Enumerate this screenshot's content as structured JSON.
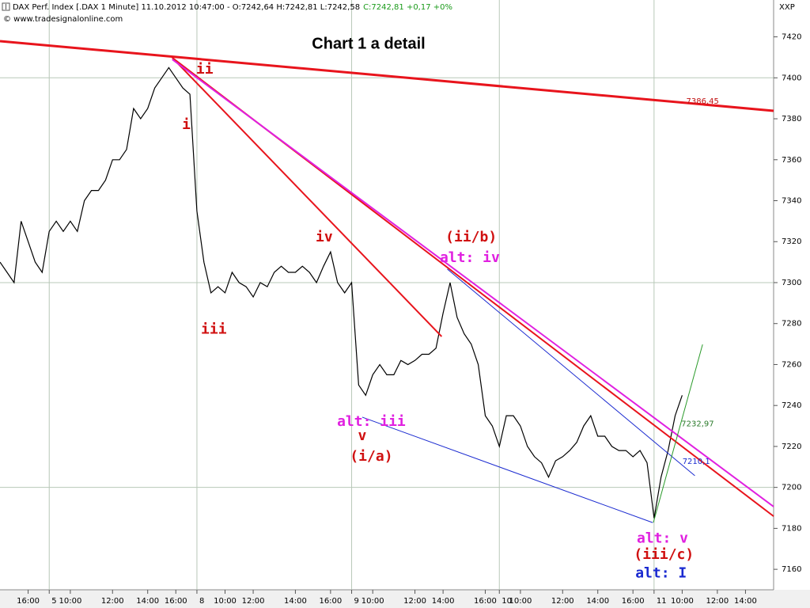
{
  "chart_data": {
    "type": "line",
    "title": "Chart 1 a detail",
    "header": {
      "instrument": "DAX Perf. Index [.DAX  1 Minute] 11.10.2012 10:47:00 - O:7242,64 H:7242,81 L:7242,58",
      "change": "C:7242,81 +0,17 +0%",
      "copyright": "© www.tradesignalonline.com",
      "symbol": "XXP"
    },
    "categories": [
      null,
      null,
      null,
      null,
      "16:00",
      null,
      null,
      "5",
      null,
      null,
      "10:00",
      null,
      null,
      null,
      null,
      null,
      "12:00",
      null,
      null,
      null,
      null,
      "14:00",
      null,
      null,
      null,
      "16:00",
      null,
      null,
      "8",
      null,
      null,
      null,
      "10:00",
      null,
      null,
      null,
      "12:00",
      null,
      null,
      null,
      null,
      null,
      "14:00",
      null,
      null,
      null,
      null,
      "16:00",
      null,
      null,
      "9",
      null,
      null,
      "10:00",
      null,
      null,
      null,
      null,
      null,
      "12:00",
      null,
      null,
      null,
      "14:00",
      null,
      null,
      null,
      null,
      null,
      "16:00",
      null,
      "10",
      null,
      null,
      "10:00",
      null,
      null,
      null,
      null,
      null,
      "12:00",
      null,
      null,
      null,
      null,
      "14:00",
      null,
      null,
      null,
      null,
      "16:00",
      null,
      null,
      "11",
      null,
      null,
      null,
      "10:00",
      null,
      null,
      null,
      null,
      "12:00",
      null,
      null,
      null,
      "14:00",
      null,
      null,
      null,
      null
    ],
    "series": [
      {
        "color": "#000000",
        "values": [
          7310,
          7305,
          7300,
          7330,
          7320,
          7310,
          7305,
          7325,
          7330,
          7325,
          7330,
          7325,
          7340,
          7345,
          7345,
          7350,
          7360,
          7360,
          7365,
          7385,
          7380,
          7385,
          7395,
          7400,
          7405,
          7400,
          7395,
          7392,
          7335,
          7310,
          7295,
          7298,
          7295,
          7305,
          7300,
          7298,
          7293,
          7300,
          7298,
          7305,
          7308,
          7305,
          7305,
          7308,
          7305,
          7300,
          7308,
          7315,
          7300,
          7295,
          7300,
          7250,
          7245,
          7255,
          7260,
          7255,
          7255,
          7262,
          7260,
          7262,
          7265,
          7265,
          7268,
          7285,
          7300,
          7283,
          7275,
          7270,
          7260,
          7235,
          7230,
          7220,
          7235,
          7235,
          7230,
          7220,
          7215,
          7212,
          7205,
          7213,
          7215,
          7218,
          7222,
          7230,
          7235,
          7225,
          7225,
          7220,
          7218,
          7218,
          7215,
          7218,
          7212,
          7185,
          7205,
          7218,
          7235,
          7245,
          null,
          null,
          null,
          null,
          null,
          null,
          null,
          null,
          null,
          null,
          null,
          null,
          null
        ]
      }
    ],
    "ylim": [
      7150,
      7438
    ],
    "yticks": [
      7160,
      7180,
      7200,
      7220,
      7240,
      7260,
      7280,
      7300,
      7320,
      7340,
      7360,
      7380,
      7400,
      7420
    ],
    "ygrid": [
      7200,
      7300,
      7400
    ],
    "trendlines": [
      {
        "color": "#e8141c",
        "width": 3,
        "x": [
          0,
          110
        ],
        "y": [
          7417.9,
          7383.9
        ]
      },
      {
        "color": "#e8141c",
        "width": 2,
        "x": [
          24.5,
          62.8
        ],
        "y": [
          7409.8,
          7273.7
        ]
      },
      {
        "color": "#e8141c",
        "width": 2,
        "x": [
          24.5,
          110
        ],
        "y": [
          7409.8,
          7185.9
        ]
      },
      {
        "color": "#e020e0",
        "width": 2,
        "x": [
          24.5,
          110
        ],
        "y": [
          7409,
          7190.6
        ]
      },
      {
        "color": "#1a2ad0",
        "width": 1,
        "x": [
          63.6,
          98.8
        ],
        "y": [
          7306.6,
          7205.7
        ]
      },
      {
        "color": "#1a2ad0",
        "width": 1,
        "x": [
          51.5,
          92.8
        ],
        "y": [
          7234.3,
          7182.8
        ]
      },
      {
        "color": "#2a9a2a",
        "width": 1,
        "x": [
          92.9,
          99.9
        ],
        "y": [
          7182.8,
          7269.8
        ]
      }
    ],
    "annotations": [
      {
        "text": "ii",
        "color": "#d01010",
        "x": 29.1,
        "y": 7404
      },
      {
        "text": "i",
        "color": "#d01010",
        "x": 26.5,
        "y": 7377
      },
      {
        "text": "iii",
        "color": "#d01010",
        "x": 30.4,
        "y": 7277
      },
      {
        "text": "iv",
        "color": "#d01010",
        "x": 46.1,
        "y": 7322
      },
      {
        "text": "(ii/b)",
        "color": "#d01010",
        "x": 67,
        "y": 7322
      },
      {
        "text": "alt: iv",
        "color": "#e020e0",
        "x": 66.8,
        "y": 7312
      },
      {
        "text": "alt: iii",
        "color": "#e020e0",
        "x": 52.8,
        "y": 7232
      },
      {
        "text": "v",
        "color": "#d01010",
        "x": 51.5,
        "y": 7225
      },
      {
        "text": "(i/a)",
        "color": "#d01010",
        "x": 52.8,
        "y": 7215
      },
      {
        "text": "alt: v",
        "color": "#e020e0",
        "x": 94.2,
        "y": 7175
      },
      {
        "text": "(iii/c)",
        "color": "#d01010",
        "x": 94.4,
        "y": 7167
      },
      {
        "text": "alt: I",
        "color": "#1a2ad0",
        "x": 94,
        "y": 7158
      }
    ],
    "price_labels": [
      {
        "text": "7386,45",
        "color": "#c01010",
        "x": 99.9,
        "y": 7388.5
      },
      {
        "text": "7232,97",
        "color": "#2a7a2a",
        "x": 99.2,
        "y": 7231
      },
      {
        "text": "7210,1",
        "color": "#1a2ad0",
        "x": 99,
        "y": 7212.6
      }
    ]
  }
}
